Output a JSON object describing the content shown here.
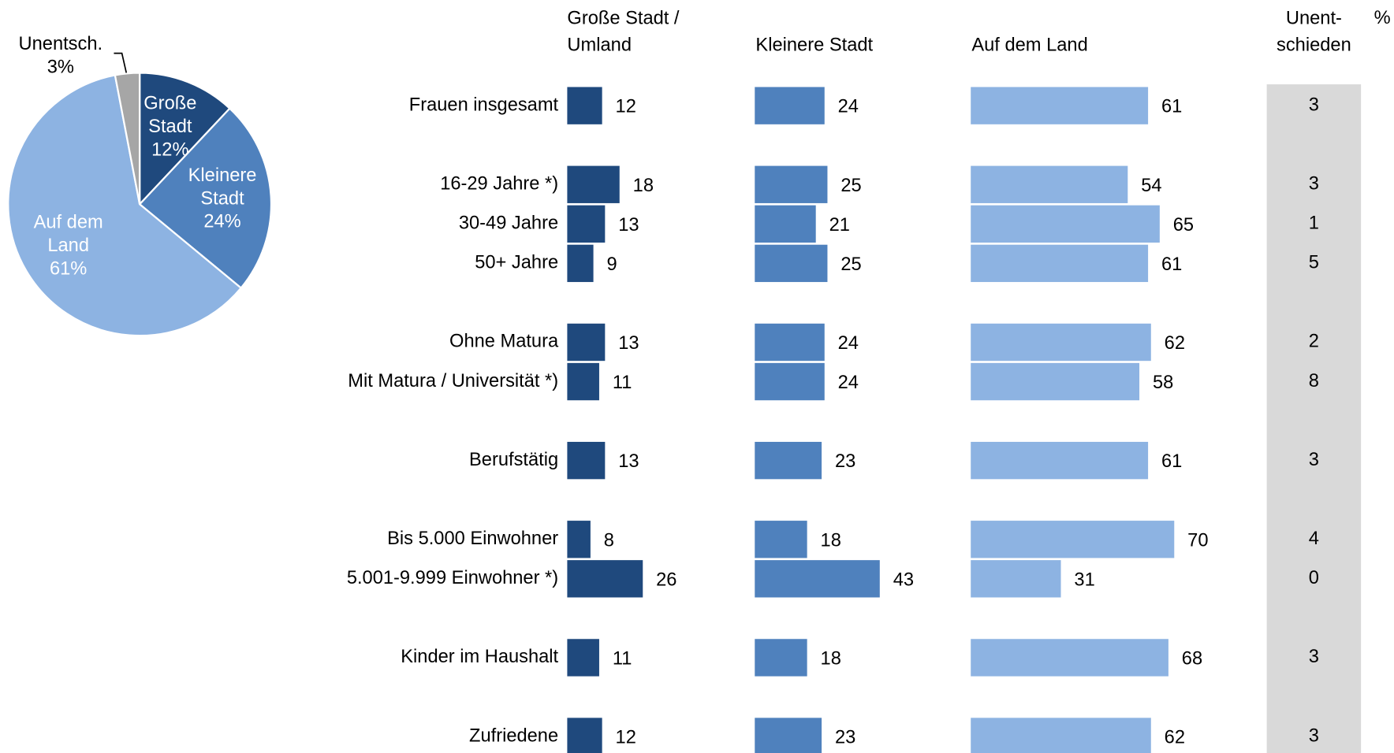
{
  "chart_data": [
    {
      "type": "pie",
      "categories": [
        "Große Stadt",
        "Kleinere Stadt",
        "Auf dem Land",
        "Unentsch."
      ],
      "values": [
        12,
        24,
        61,
        3
      ],
      "value_labels": [
        "12%",
        "24%",
        "61%",
        "3%"
      ],
      "colors": [
        "#1f497d",
        "#4f81bd",
        "#8db3e2",
        "#a6a6a6"
      ]
    },
    {
      "type": "bar",
      "orientation": "horizontal",
      "unit": "%",
      "categories": [
        "Frauen insgesamt",
        "16-29 Jahre *)",
        "30-49 Jahre",
        "50+ Jahre",
        "Ohne Matura",
        "Mit Matura / Universität *)",
        "Berufstätig",
        "Bis 5.000 Einwohner",
        "5.001-9.999 Einwohner *)",
        "Kinder im Haushalt",
        "Zufriedene"
      ],
      "series": [
        {
          "name": "Große Stadt / Umland",
          "color": "#1f497d",
          "values": [
            12,
            18,
            13,
            9,
            13,
            11,
            13,
            8,
            26,
            11,
            12
          ]
        },
        {
          "name": "Kleinere Stadt",
          "color": "#4f81bd",
          "values": [
            24,
            25,
            21,
            25,
            24,
            24,
            23,
            18,
            43,
            18,
            23
          ]
        },
        {
          "name": "Auf dem Land",
          "color": "#8db3e2",
          "values": [
            61,
            54,
            65,
            61,
            62,
            58,
            61,
            70,
            31,
            68,
            62
          ]
        },
        {
          "name": "Unent- schieden",
          "color": "#d9d9d9",
          "values": [
            3,
            3,
            1,
            5,
            2,
            8,
            3,
            4,
            0,
            3,
            3
          ]
        }
      ]
    }
  ]
}
